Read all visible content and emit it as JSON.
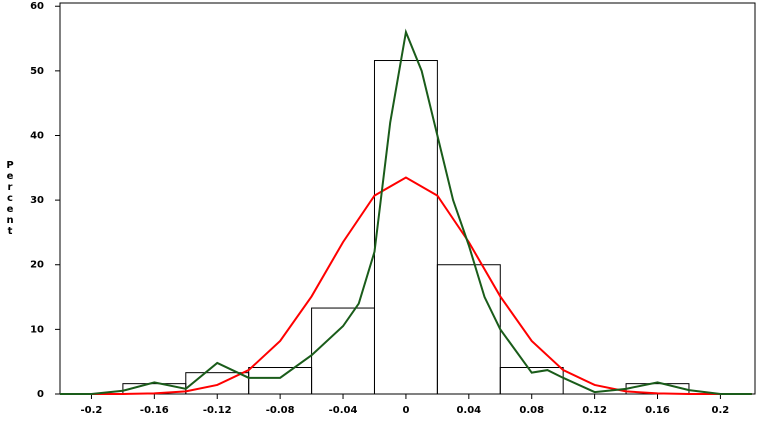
{
  "chart_data": {
    "type": "histogram",
    "y_label": "Percent",
    "xlim": [
      -0.22,
      0.222
    ],
    "ylim": [
      0,
      60.5
    ],
    "xticks": [
      -0.2,
      -0.16,
      -0.12,
      -0.08,
      -0.04,
      0,
      0.04,
      0.08,
      0.12,
      0.16,
      0.2
    ],
    "yticks": [
      0,
      10,
      20,
      30,
      40,
      50,
      60
    ],
    "bins": [
      -0.18,
      -0.14,
      -0.1,
      -0.06,
      -0.02,
      0.02,
      0.06,
      0.1,
      0.14,
      0.18
    ],
    "values": [
      1.6,
      3.3,
      4.1,
      13.3,
      51.6,
      20,
      4.1,
      0,
      1.6
    ],
    "color": "#000000",
    "curves": [
      {
        "color": "#ff0000",
        "x": [
          -0.22,
          -0.2,
          -0.18,
          -0.16,
          -0.14,
          -0.12,
          -0.1,
          -0.08,
          -0.06,
          -0.04,
          -0.02,
          0,
          0.02,
          0.04,
          0.06,
          0.08,
          0.1,
          0.12,
          0.14,
          0.16,
          0.18,
          0.2,
          0.22
        ],
        "values": [
          0,
          0,
          0,
          0.1,
          0.4,
          1.4,
          3.7,
          8.2,
          15.1,
          23.5,
          30.7,
          33.5,
          30.7,
          23.5,
          15.1,
          8.2,
          3.7,
          1.4,
          0.4,
          0.1,
          0,
          0,
          0
        ]
      },
      {
        "color": "#1a5c1a",
        "x": [
          -0.22,
          -0.2,
          -0.18,
          -0.16,
          -0.14,
          -0.12,
          -0.1,
          -0.08,
          -0.06,
          -0.04,
          -0.03,
          -0.02,
          -0.01,
          0,
          0.01,
          0.02,
          0.03,
          0.04,
          0.05,
          0.06,
          0.08,
          0.09,
          0.1,
          0.12,
          0.14,
          0.16,
          0.18,
          0.2,
          0.22
        ],
        "values": [
          0,
          0,
          0.5,
          1.8,
          0.8,
          4.8,
          2.5,
          2.5,
          6,
          10.5,
          14,
          22,
          42,
          56,
          50,
          40,
          30,
          23,
          15,
          10,
          3.3,
          3.7,
          2.5,
          0.3,
          0.8,
          1.8,
          0.6,
          0,
          0
        ]
      }
    ]
  }
}
